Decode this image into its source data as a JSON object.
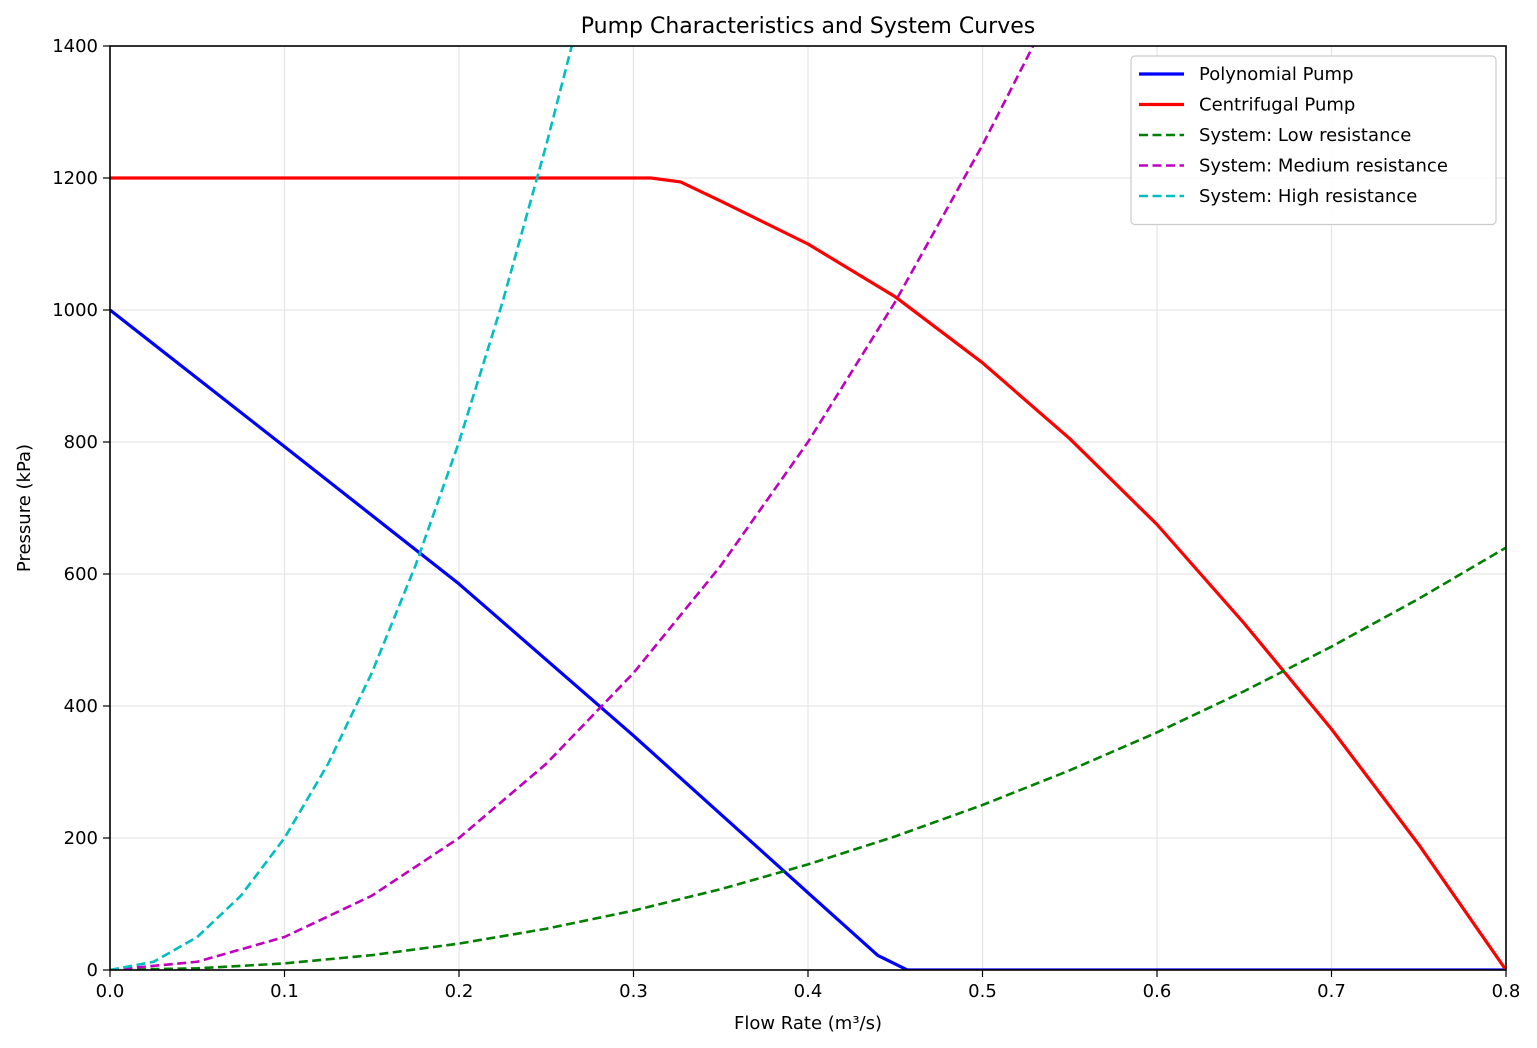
{
  "chart_data": {
    "type": "line",
    "title": "Pump Characteristics and System Curves",
    "xlabel": "Flow Rate (m³/s)",
    "ylabel": "Pressure (kPa)",
    "xlim": [
      0,
      0.8
    ],
    "ylim": [
      0,
      1400
    ],
    "xticks": [
      0.0,
      0.1,
      0.2,
      0.3,
      0.4,
      0.5,
      0.6,
      0.7,
      0.8
    ],
    "xtick_labels": [
      "0.0",
      "0.1",
      "0.2",
      "0.3",
      "0.4",
      "0.5",
      "0.6",
      "0.7",
      "0.8"
    ],
    "yticks": [
      0,
      200,
      400,
      600,
      800,
      1000,
      1200,
      1400
    ],
    "ytick_labels": [
      "0",
      "200",
      "400",
      "600",
      "800",
      "1000",
      "1200",
      "1400"
    ],
    "grid": true,
    "legend_position": "top-right",
    "series": [
      {
        "name": "Polynomial Pump",
        "color": "#0000ff",
        "style": "solid",
        "x": [
          0,
          0.1,
          0.2,
          0.3,
          0.4,
          0.44,
          0.457,
          0.5,
          0.6,
          0.7,
          0.8
        ],
        "y": [
          1000,
          793,
          585,
          355,
          117,
          22,
          0,
          0,
          0,
          0,
          0
        ]
      },
      {
        "name": "Centrifugal Pump",
        "color": "#ff0000",
        "style": "solid",
        "x": [
          0,
          0.1,
          0.2,
          0.31,
          0.327,
          0.35,
          0.4,
          0.45,
          0.5,
          0.55,
          0.6,
          0.65,
          0.7,
          0.75,
          0.8
        ],
        "y": [
          1200,
          1200,
          1200,
          1200,
          1194,
          1165,
          1100,
          1020,
          920,
          805,
          675,
          525,
          365,
          190,
          0
        ]
      },
      {
        "name": "System: Low resistance",
        "color": "#008000",
        "style": "dashed",
        "x": [
          0,
          0.05,
          0.1,
          0.15,
          0.2,
          0.25,
          0.3,
          0.35,
          0.4,
          0.45,
          0.5,
          0.55,
          0.6,
          0.65,
          0.7,
          0.75,
          0.8
        ],
        "y": [
          0,
          2.5,
          10,
          22.5,
          40,
          62.5,
          90,
          122.5,
          160,
          202.5,
          250,
          302.5,
          360,
          422.5,
          490,
          562.5,
          640
        ]
      },
      {
        "name": "System: Medium resistance",
        "color": "#bf00bf",
        "style": "dashed",
        "x": [
          0,
          0.05,
          0.1,
          0.15,
          0.2,
          0.25,
          0.3,
          0.35,
          0.4,
          0.45,
          0.5,
          0.529
        ],
        "y": [
          0,
          12.5,
          50,
          112.5,
          200,
          312.5,
          450,
          612.5,
          800,
          1012.5,
          1250,
          1400
        ]
      },
      {
        "name": "System: High resistance",
        "color": "#00bfbf",
        "style": "dashed",
        "x": [
          0,
          0.025,
          0.05,
          0.075,
          0.1,
          0.125,
          0.15,
          0.175,
          0.2,
          0.225,
          0.25,
          0.2646
        ],
        "y": [
          0,
          12.5,
          50,
          112.5,
          200,
          312.5,
          450,
          612.5,
          800,
          1012.5,
          1250,
          1400
        ]
      }
    ]
  }
}
